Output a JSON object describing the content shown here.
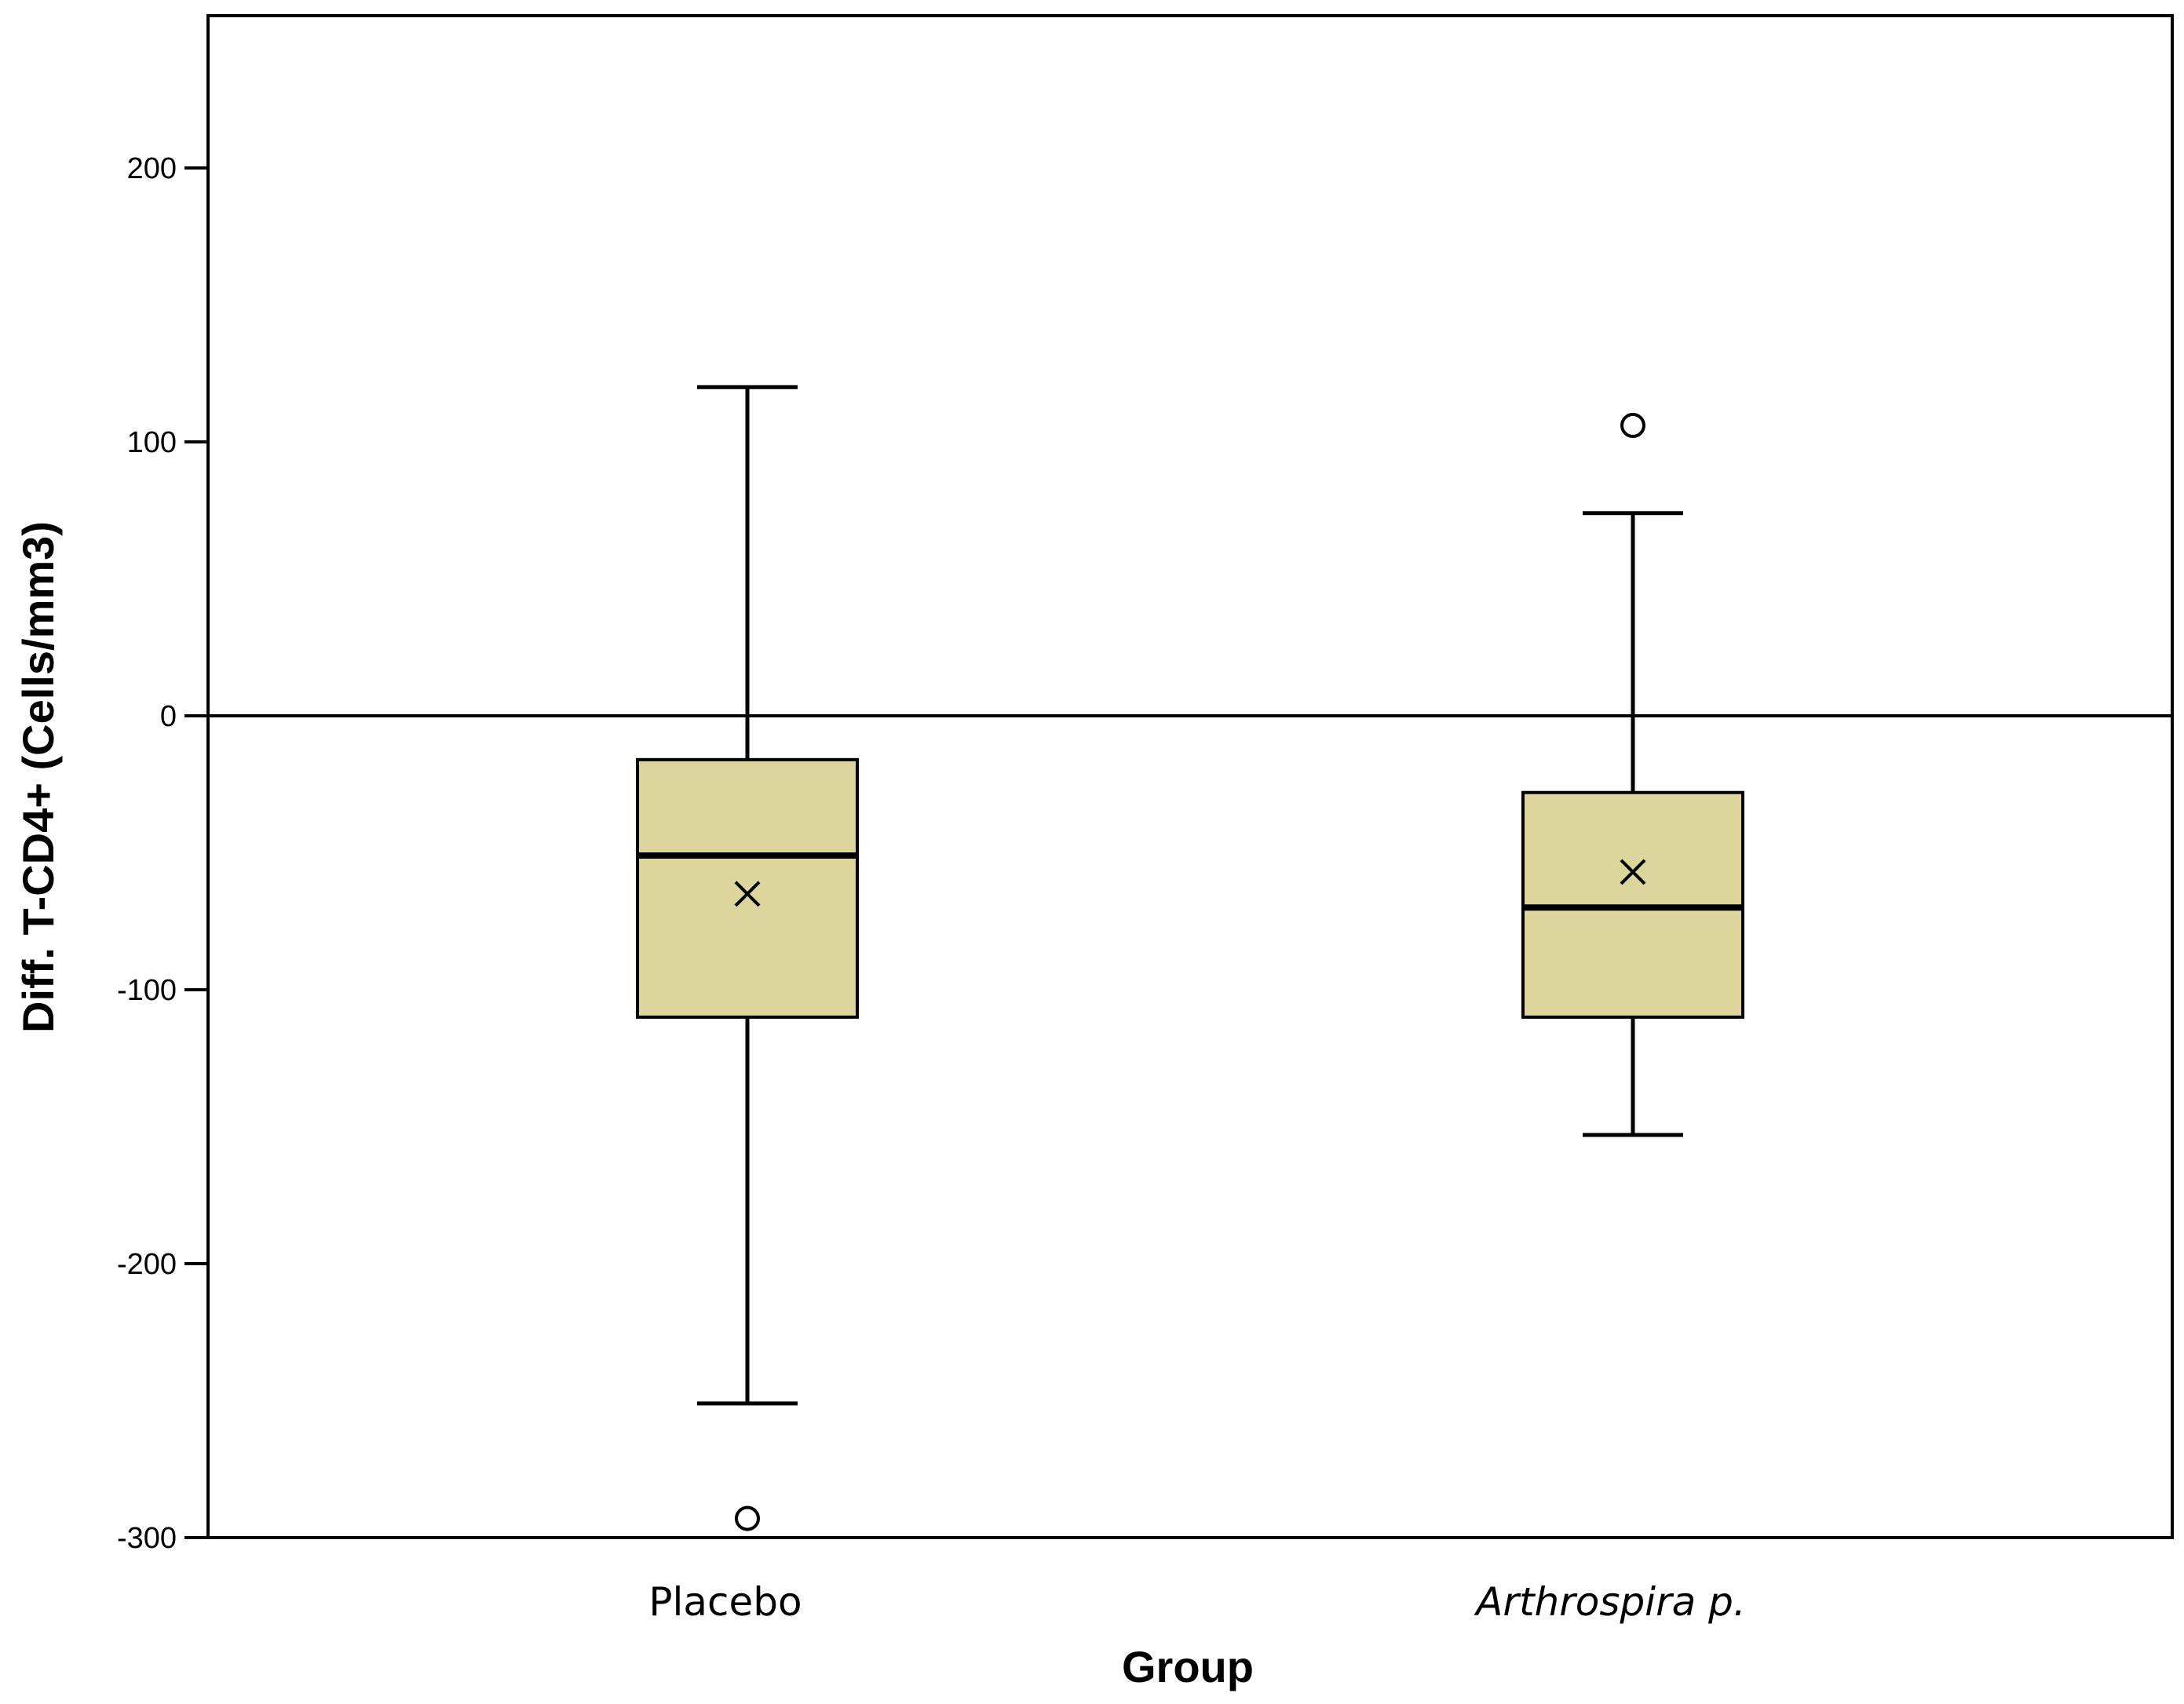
{
  "chart_data": {
    "type": "boxplot",
    "title": "",
    "xlabel": "Group",
    "ylabel": "Diff. T-CD4+ (Cells/mm3)",
    "ylim": [
      -300,
      260
    ],
    "yticks": [
      200,
      100,
      0,
      -100,
      -200,
      -300
    ],
    "reference_line": 0,
    "grid": false,
    "box_color": "#dcd59e",
    "categories": [
      {
        "label": "Placebo",
        "italic": false
      },
      {
        "label": "Arthrospira p.",
        "italic": true
      }
    ],
    "series": [
      {
        "whisker_low": -251,
        "q1": -110,
        "median": -51,
        "q3": -16,
        "whisker_high": 120,
        "mean": -65,
        "outliers": [
          -293
        ]
      },
      {
        "whisker_low": -153,
        "q1": -110,
        "median": -70,
        "q3": -28,
        "whisker_high": 74,
        "mean": -57,
        "outliers": [
          106
        ]
      }
    ]
  }
}
